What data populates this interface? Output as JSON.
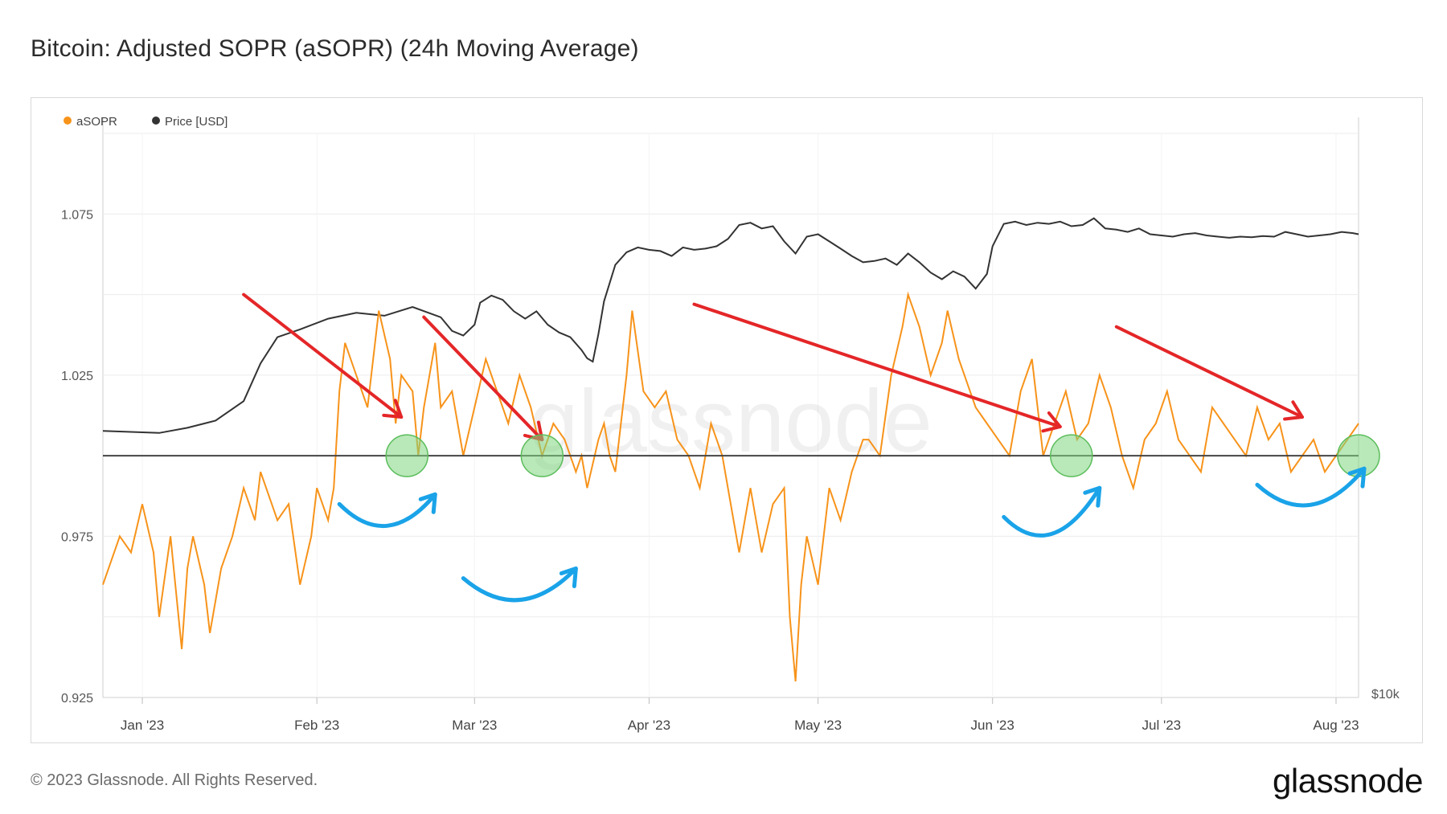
{
  "title": "Bitcoin: Adjusted SOPR (aSOPR) (24h Moving Average)",
  "footer": {
    "copyright": "© 2023 Glassnode. All Rights Reserved.",
    "logo": "glassnode",
    "watermark": "glassnode"
  },
  "chart_data": {
    "type": "line",
    "title": "Bitcoin: Adjusted SOPR (aSOPR) (24h Moving Average)",
    "legend": [
      {
        "name": "aSOPR",
        "color": "#f7931a"
      },
      {
        "name": "Price [USD]",
        "color": "#333333"
      }
    ],
    "legend_position": "top-left",
    "y_left": {
      "ticks": [
        "1.075",
        "1.025",
        "0.975",
        "0.925"
      ],
      "range": [
        0.925,
        1.1
      ]
    },
    "y_right": {
      "label": "$10k",
      "scale": "log"
    },
    "x_ticks": [
      "Jan '23",
      "Feb '23",
      "Mar '23",
      "Apr '23",
      "May '23",
      "Jun '23",
      "Jul '23",
      "Aug '23"
    ],
    "x_range_days": [
      0,
      223
    ],
    "reference_line": 1.0,
    "series": [
      {
        "name": "aSOPR",
        "color": "#f7931a",
        "points": [
          [
            0,
            0.96
          ],
          [
            3,
            0.975
          ],
          [
            5,
            0.97
          ],
          [
            7,
            0.985
          ],
          [
            9,
            0.97
          ],
          [
            10,
            0.95
          ],
          [
            12,
            0.975
          ],
          [
            14,
            0.94
          ],
          [
            15,
            0.965
          ],
          [
            16,
            0.975
          ],
          [
            18,
            0.96
          ],
          [
            19,
            0.945
          ],
          [
            21,
            0.965
          ],
          [
            23,
            0.975
          ],
          [
            25,
            0.99
          ],
          [
            27,
            0.98
          ],
          [
            28,
            0.995
          ],
          [
            31,
            0.98
          ],
          [
            33,
            0.985
          ],
          [
            35,
            0.96
          ],
          [
            37,
            0.975
          ],
          [
            38,
            0.99
          ],
          [
            40,
            0.98
          ],
          [
            41,
            0.99
          ],
          [
            42,
            1.02
          ],
          [
            43,
            1.035
          ],
          [
            45,
            1.025
          ],
          [
            47,
            1.015
          ],
          [
            49,
            1.045
          ],
          [
            51,
            1.03
          ],
          [
            52,
            1.01
          ],
          [
            53,
            1.025
          ],
          [
            55,
            1.02
          ],
          [
            56,
            1.0
          ],
          [
            57,
            1.015
          ],
          [
            59,
            1.035
          ],
          [
            60,
            1.015
          ],
          [
            62,
            1.02
          ],
          [
            64,
            1.0
          ],
          [
            66,
            1.015
          ],
          [
            68,
            1.03
          ],
          [
            70,
            1.02
          ],
          [
            72,
            1.01
          ],
          [
            74,
            1.025
          ],
          [
            76,
            1.015
          ],
          [
            78,
            1.0
          ],
          [
            80,
            1.01
          ],
          [
            82,
            1.005
          ],
          [
            84,
            0.995
          ],
          [
            85,
            1.0
          ],
          [
            86,
            0.99
          ],
          [
            88,
            1.005
          ],
          [
            89,
            1.01
          ],
          [
            90,
            1.0
          ],
          [
            91,
            0.995
          ],
          [
            92,
            1.01
          ],
          [
            93,
            1.025
          ],
          [
            94,
            1.045
          ],
          [
            96,
            1.02
          ],
          [
            98,
            1.015
          ],
          [
            100,
            1.02
          ],
          [
            102,
            1.005
          ],
          [
            104,
            1.0
          ],
          [
            106,
            0.99
          ],
          [
            108,
            1.01
          ],
          [
            110,
            1.0
          ],
          [
            112,
            0.98
          ],
          [
            113,
            0.97
          ],
          [
            115,
            0.99
          ],
          [
            117,
            0.97
          ],
          [
            119,
            0.985
          ],
          [
            121,
            0.99
          ],
          [
            122,
            0.95
          ],
          [
            123,
            0.93
          ],
          [
            124,
            0.96
          ],
          [
            125,
            0.975
          ],
          [
            127,
            0.96
          ],
          [
            129,
            0.99
          ],
          [
            131,
            0.98
          ],
          [
            133,
            0.995
          ],
          [
            135,
            1.005
          ],
          [
            136,
            1.005
          ],
          [
            138,
            1.0
          ],
          [
            140,
            1.025
          ],
          [
            142,
            1.04
          ],
          [
            143,
            1.05
          ],
          [
            145,
            1.04
          ],
          [
            147,
            1.025
          ],
          [
            149,
            1.035
          ],
          [
            150,
            1.045
          ],
          [
            152,
            1.03
          ],
          [
            154,
            1.02
          ],
          [
            155,
            1.015
          ],
          [
            157,
            1.01
          ],
          [
            159,
            1.005
          ],
          [
            161,
            1.0
          ],
          [
            163,
            1.02
          ],
          [
            165,
            1.03
          ],
          [
            167,
            1.0
          ],
          [
            169,
            1.01
          ],
          [
            171,
            1.02
          ],
          [
            173,
            1.005
          ],
          [
            175,
            1.01
          ],
          [
            177,
            1.025
          ],
          [
            179,
            1.015
          ],
          [
            181,
            1.0
          ],
          [
            183,
            0.99
          ],
          [
            185,
            1.005
          ],
          [
            187,
            1.01
          ],
          [
            189,
            1.02
          ],
          [
            191,
            1.005
          ],
          [
            193,
            1.0
          ],
          [
            195,
            0.995
          ],
          [
            197,
            1.015
          ],
          [
            199,
            1.01
          ],
          [
            201,
            1.005
          ],
          [
            203,
            1.0
          ],
          [
            205,
            1.015
          ],
          [
            207,
            1.005
          ],
          [
            209,
            1.01
          ],
          [
            211,
            0.995
          ],
          [
            213,
            1.0
          ],
          [
            215,
            1.005
          ],
          [
            217,
            0.995
          ],
          [
            219,
            1.0
          ],
          [
            221,
            1.005
          ],
          [
            223,
            1.01
          ]
        ]
      },
      {
        "name": "Price [USD]",
        "color": "#333333",
        "points": [
          [
            0,
            16600
          ],
          [
            5,
            16550
          ],
          [
            10,
            16500
          ],
          [
            15,
            16750
          ],
          [
            20,
            17100
          ],
          [
            25,
            18100
          ],
          [
            28,
            20200
          ],
          [
            31,
            21800
          ],
          [
            35,
            22300
          ],
          [
            40,
            23000
          ],
          [
            45,
            23400
          ],
          [
            50,
            23200
          ],
          [
            55,
            23800
          ],
          [
            60,
            23100
          ],
          [
            62,
            22200
          ],
          [
            64,
            21900
          ],
          [
            66,
            22600
          ],
          [
            67,
            24100
          ],
          [
            69,
            24600
          ],
          [
            71,
            24300
          ],
          [
            73,
            23500
          ],
          [
            75,
            23000
          ],
          [
            77,
            23500
          ],
          [
            79,
            22600
          ],
          [
            81,
            22100
          ],
          [
            83,
            21800
          ],
          [
            85,
            21000
          ],
          [
            86,
            20500
          ],
          [
            87,
            20300
          ],
          [
            88,
            22000
          ],
          [
            89,
            24200
          ],
          [
            91,
            26900
          ],
          [
            93,
            27900
          ],
          [
            95,
            28300
          ],
          [
            97,
            28100
          ],
          [
            99,
            28000
          ],
          [
            101,
            27600
          ],
          [
            103,
            28300
          ],
          [
            105,
            28100
          ],
          [
            107,
            28200
          ],
          [
            109,
            28400
          ],
          [
            111,
            29000
          ],
          [
            113,
            30200
          ],
          [
            115,
            30400
          ],
          [
            117,
            29900
          ],
          [
            119,
            30100
          ],
          [
            121,
            28800
          ],
          [
            123,
            27800
          ],
          [
            125,
            29200
          ],
          [
            127,
            29400
          ],
          [
            129,
            28800
          ],
          [
            131,
            28200
          ],
          [
            133,
            27600
          ],
          [
            135,
            27100
          ],
          [
            137,
            27200
          ],
          [
            139,
            27400
          ],
          [
            141,
            26900
          ],
          [
            143,
            27800
          ],
          [
            145,
            27100
          ],
          [
            147,
            26300
          ],
          [
            149,
            25800
          ],
          [
            151,
            26400
          ],
          [
            153,
            26000
          ],
          [
            155,
            25100
          ],
          [
            157,
            26200
          ],
          [
            158,
            28400
          ],
          [
            160,
            30300
          ],
          [
            162,
            30500
          ],
          [
            164,
            30200
          ],
          [
            166,
            30400
          ],
          [
            168,
            30300
          ],
          [
            170,
            30500
          ],
          [
            172,
            30100
          ],
          [
            174,
            30200
          ],
          [
            176,
            30800
          ],
          [
            178,
            29900
          ],
          [
            180,
            29800
          ],
          [
            182,
            29600
          ],
          [
            184,
            29900
          ],
          [
            186,
            29400
          ],
          [
            188,
            29300
          ],
          [
            190,
            29200
          ],
          [
            192,
            29400
          ],
          [
            194,
            29500
          ],
          [
            196,
            29300
          ],
          [
            198,
            29200
          ],
          [
            200,
            29100
          ],
          [
            202,
            29200
          ],
          [
            204,
            29150
          ],
          [
            206,
            29250
          ],
          [
            208,
            29200
          ],
          [
            210,
            29600
          ],
          [
            212,
            29400
          ],
          [
            214,
            29200
          ],
          [
            216,
            29300
          ],
          [
            218,
            29400
          ],
          [
            220,
            29600
          ],
          [
            222,
            29500
          ],
          [
            223,
            29400
          ]
        ]
      }
    ],
    "annotations": [
      {
        "type": "red-arrow",
        "from": [
          25,
          1.05
        ],
        "to": [
          53,
          1.012
        ]
      },
      {
        "type": "red-arrow",
        "from": [
          57,
          1.043
        ],
        "to": [
          78,
          1.005
        ]
      },
      {
        "type": "red-arrow",
        "from": [
          105,
          1.047
        ],
        "to": [
          170,
          1.009
        ]
      },
      {
        "type": "red-arrow",
        "from": [
          180,
          1.04
        ],
        "to": [
          213,
          1.012
        ]
      },
      {
        "type": "green-circle",
        "at": [
          54,
          1.0
        ]
      },
      {
        "type": "green-circle",
        "at": [
          78,
          1.0
        ]
      },
      {
        "type": "green-circle",
        "at": [
          172,
          1.0
        ]
      },
      {
        "type": "green-circle",
        "at": [
          223,
          1.0
        ]
      },
      {
        "type": "blue-curve",
        "from": [
          42,
          0.985
        ],
        "to": [
          59,
          0.988
        ]
      },
      {
        "type": "blue-curve",
        "from": [
          64,
          0.962
        ],
        "to": [
          84,
          0.965
        ]
      },
      {
        "type": "blue-curve",
        "from": [
          160,
          0.981
        ],
        "to": [
          177,
          0.99
        ]
      },
      {
        "type": "blue-curve",
        "from": [
          205,
          0.991
        ],
        "to": [
          224,
          0.996
        ]
      }
    ]
  }
}
